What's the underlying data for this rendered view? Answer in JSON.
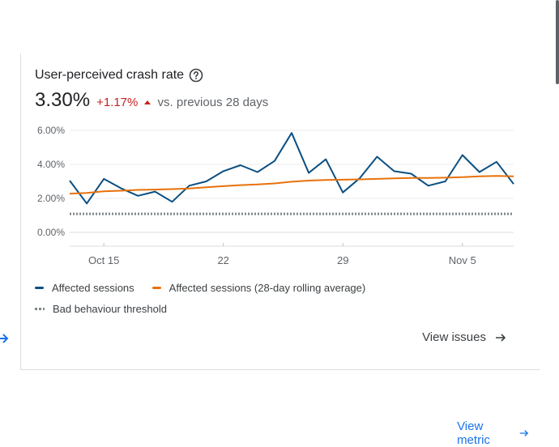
{
  "card": {
    "title": "User-perceived crash rate",
    "help_icon": "help-circle-icon",
    "metric_value": "3.30%",
    "metric_change": "+1.17%",
    "metric_compare": "vs. previous 28 days",
    "colors": {
      "positive_change": "#c5221f",
      "link": "#1a73e8"
    }
  },
  "legend": {
    "affected": "Affected sessions",
    "rolling": "Affected sessions (28-day rolling average)",
    "threshold": "Bad behaviour threshold"
  },
  "actions": {
    "view_issues": "View issues",
    "view_metric": "View metric"
  },
  "chart_data": {
    "type": "line",
    "ylim": [
      0,
      6
    ],
    "y_ticks": [
      "6.00%",
      "4.00%",
      "2.00%",
      "0.00%"
    ],
    "x_tick_labels": [
      "Oct 15",
      "22",
      "29",
      "Nov 5"
    ],
    "x_tick_index": [
      2,
      9,
      16,
      23
    ],
    "series": [
      {
        "name": "Affected sessions",
        "color": "#0b4f82",
        "values": [
          3.05,
          1.7,
          3.15,
          2.6,
          2.15,
          2.4,
          1.8,
          2.75,
          3.0,
          3.6,
          3.95,
          3.55,
          4.2,
          5.85,
          3.5,
          4.3,
          2.35,
          3.2,
          4.45,
          3.6,
          3.45,
          2.75,
          3.0,
          4.55,
          3.55,
          4.15,
          2.85
        ]
      },
      {
        "name": "Affected sessions (28-day rolling average)",
        "color": "#e8710a",
        "values": [
          2.28,
          2.32,
          2.42,
          2.45,
          2.5,
          2.52,
          2.55,
          2.58,
          2.65,
          2.72,
          2.78,
          2.82,
          2.88,
          2.98,
          3.05,
          3.08,
          3.1,
          3.12,
          3.15,
          3.18,
          3.2,
          3.2,
          3.22,
          3.25,
          3.3,
          3.32,
          3.3
        ]
      }
    ],
    "threshold": {
      "name": "Bad behaviour threshold",
      "value": 1.09,
      "color": "#80868b"
    },
    "grid": true
  }
}
